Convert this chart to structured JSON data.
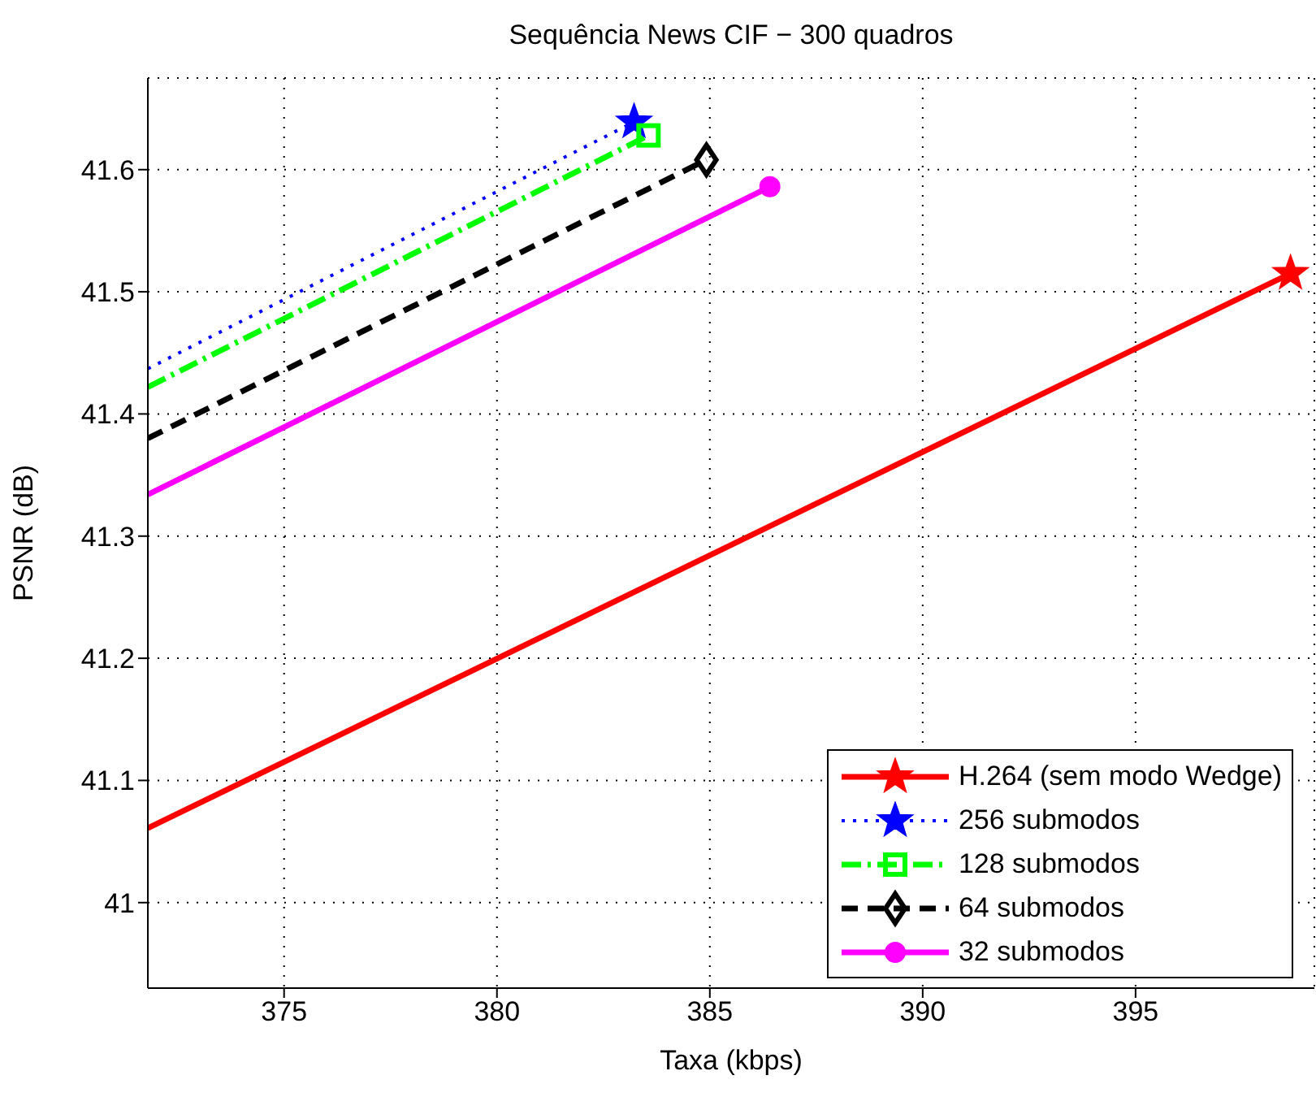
{
  "chart_data": {
    "type": "line",
    "title": "Sequência News CIF − 300 quadros",
    "xlabel": "Taxa (kbps)",
    "ylabel": "PSNR (dB)",
    "xlim": [
      371.8,
      399.2
    ],
    "xticks": [
      375,
      380,
      385,
      390,
      395
    ],
    "ylim": [
      40.93,
      41.675
    ],
    "yticks": [
      41,
      41.1,
      41.2,
      41.3,
      41.4,
      41.5,
      41.6
    ],
    "grid": true,
    "legend": "bottom right",
    "series": [
      {
        "name": "H.264 (sem modo Wedge)",
        "color": "#ff0000",
        "x": [
          371.8,
          398.64
        ],
        "values": [
          41.061,
          41.515
        ],
        "marker": "star",
        "line_style": "solid"
      },
      {
        "name": "256 submodos",
        "color": "#0000ff",
        "x": [
          371.8,
          383.22
        ],
        "values": [
          41.437,
          41.639
        ],
        "marker": "star",
        "line_style": "dotted"
      },
      {
        "name": "128 submodos",
        "color": "#00ff00",
        "x": [
          371.8,
          383.56
        ],
        "values": [
          41.422,
          41.628
        ],
        "marker": "square",
        "line_style": "dashdot"
      },
      {
        "name": "64 submodos",
        "color": "#000000",
        "x": [
          371.8,
          384.92
        ],
        "values": [
          41.38,
          41.608
        ],
        "marker": "diamond",
        "line_style": "dashed"
      },
      {
        "name": "32 submodos",
        "color": "#ff00ff",
        "x": [
          371.8,
          386.41
        ],
        "values": [
          41.334,
          41.586
        ],
        "marker": "circle",
        "line_style": "solid"
      }
    ]
  }
}
